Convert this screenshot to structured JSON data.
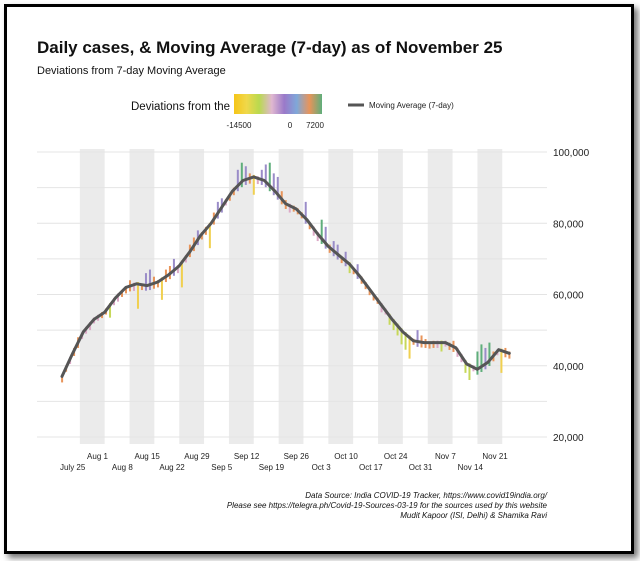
{
  "chart_data": {
    "type": "bar",
    "title": "Daily cases, & Moving Average (7-day) as of November 25",
    "subtitle": "Deviations from 7-day Moving Average",
    "legend": {
      "color_title": "Deviations from the MA",
      "color_ticks": [
        "-14500",
        "0",
        "7200"
      ],
      "color_stops": [
        "#f5c518",
        "#f0d84a",
        "#b9d94f",
        "#e0b8d0",
        "#9a79c9",
        "#7fa8d9",
        "#e8945a",
        "#5fae7b"
      ],
      "line_label": "Moving Average (7-day)",
      "position": "top"
    },
    "x_ticks_upper": [
      "Aug 1",
      "Aug 15",
      "Aug 29",
      "Sep 12",
      "Sep 26",
      "Oct 10",
      "Oct 24",
      "Nov 7",
      "Nov 21"
    ],
    "x_ticks_lower": [
      "July 25",
      "Aug 8",
      "Aug 22",
      "Sep 5",
      "Sep 19",
      "Oct 3",
      "Oct 17",
      "Oct 31",
      "Nov 14"
    ],
    "y_ticks": [
      "100,000",
      "80,000",
      "60,000",
      "40,000",
      "20,000"
    ],
    "ylim": [
      20000,
      100000
    ],
    "xlabel": "",
    "ylabel": "",
    "colors": {
      "line": "#555555",
      "shade": "#ebebeb",
      "grid": "#e4e4e4",
      "bar_low": "#e8c020",
      "bar_mid": "#e8945a",
      "bar_high": "#5fae7b"
    },
    "moving_average": [
      {
        "date": "Jul 22",
        "value": 37000
      },
      {
        "date": "Jul 25",
        "value": 43500
      },
      {
        "date": "Jul 28",
        "value": 49500
      },
      {
        "date": "Jul 31",
        "value": 53000
      },
      {
        "date": "Aug 3",
        "value": 55000
      },
      {
        "date": "Aug 6",
        "value": 59000
      },
      {
        "date": "Aug 9",
        "value": 62000
      },
      {
        "date": "Aug 12",
        "value": 63000
      },
      {
        "date": "Aug 15",
        "value": 62500
      },
      {
        "date": "Aug 18",
        "value": 63500
      },
      {
        "date": "Aug 21",
        "value": 65500
      },
      {
        "date": "Aug 24",
        "value": 68000
      },
      {
        "date": "Aug 27",
        "value": 72000
      },
      {
        "date": "Aug 30",
        "value": 76500
      },
      {
        "date": "Sep 2",
        "value": 80000
      },
      {
        "date": "Sep 5",
        "value": 84500
      },
      {
        "date": "Sep 8",
        "value": 89000
      },
      {
        "date": "Sep 11",
        "value": 92000
      },
      {
        "date": "Sep 14",
        "value": 93000
      },
      {
        "date": "Sep 17",
        "value": 92000
      },
      {
        "date": "Sep 20",
        "value": 89000
      },
      {
        "date": "Sep 23",
        "value": 85500
      },
      {
        "date": "Sep 26",
        "value": 84000
      },
      {
        "date": "Sep 29",
        "value": 81000
      },
      {
        "date": "Oct 2",
        "value": 77000
      },
      {
        "date": "Oct 5",
        "value": 73500
      },
      {
        "date": "Oct 8",
        "value": 71000
      },
      {
        "date": "Oct 11",
        "value": 68500
      },
      {
        "date": "Oct 14",
        "value": 65000
      },
      {
        "date": "Oct 17",
        "value": 61000
      },
      {
        "date": "Oct 20",
        "value": 57000
      },
      {
        "date": "Oct 23",
        "value": 53000
      },
      {
        "date": "Oct 26",
        "value": 49500
      },
      {
        "date": "Oct 29",
        "value": 47000
      },
      {
        "date": "Nov 1",
        "value": 46500
      },
      {
        "date": "Nov 4",
        "value": 46500
      },
      {
        "date": "Nov 7",
        "value": 46500
      },
      {
        "date": "Nov 10",
        "value": 45000
      },
      {
        "date": "Nov 13",
        "value": 40500
      },
      {
        "date": "Nov 16",
        "value": 39000
      },
      {
        "date": "Nov 19",
        "value": 41000
      },
      {
        "date": "Nov 22",
        "value": 44500
      },
      {
        "date": "Nov 25",
        "value": 43500
      }
    ],
    "daily_cases": [
      37000,
      39000,
      40500,
      45000,
      48000,
      47500,
      49000,
      50000,
      52000,
      53000,
      54000,
      55000,
      53500,
      57000,
      58000,
      61000,
      62000,
      64000,
      61000,
      56000,
      63000,
      66000,
      67000,
      65000,
      64000,
      58500,
      67000,
      68000,
      70000,
      66000,
      62000,
      69000,
      74000,
      76000,
      78000,
      77500,
      79000,
      73000,
      83000,
      86000,
      87000,
      85000,
      88000,
      90000,
      95000,
      97000,
      96000,
      94000,
      88000,
      91000,
      95000,
      96500,
      97000,
      94000,
      93000,
      89000,
      86500,
      83000,
      84000,
      83500,
      82000,
      86000,
      80000,
      76500,
      75000,
      81000,
      79000,
      74000,
      75000,
      74000,
      70500,
      72000,
      66000,
      67500,
      68500,
      65000,
      63500,
      61500,
      60000,
      58000,
      55000,
      54500,
      51500,
      50000,
      48500,
      46000,
      44500,
      42000,
      46500,
      50000,
      48500,
      47500,
      46500,
      47000,
      45000,
      44000,
      45500,
      46500,
      47000,
      42500,
      41000,
      38000,
      36000,
      38500,
      44000,
      46000,
      45000,
      46500,
      44000,
      43000,
      38000,
      45000,
      44000
    ],
    "data_source_text": "Data Source: India COVID-19 Tracker, https://www.covid19india.org/",
    "see_also_text": "Please see https://telegra.ph/Covid-19-Sources-03-19 for the sources used by this website",
    "authors_text": "Mudit Kapoor (ISI, Delhi) & Shamika Ravi"
  }
}
